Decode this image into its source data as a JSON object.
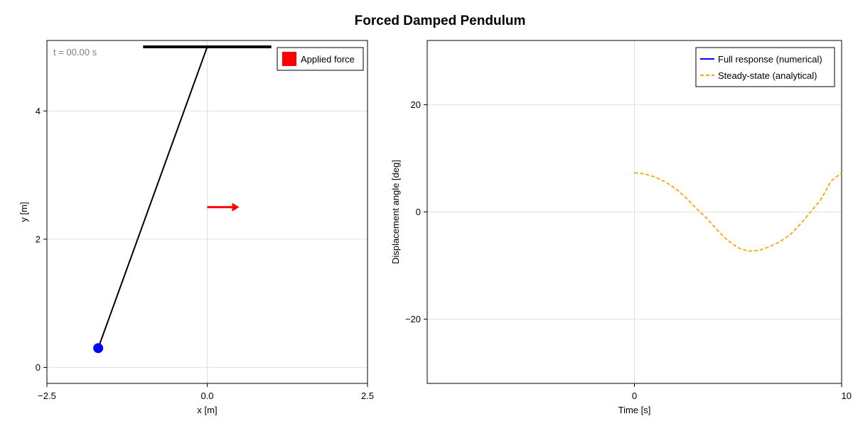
{
  "figure": {
    "title": "Forced Damped Pendulum"
  },
  "chart_data": [
    {
      "type": "scatter",
      "name": "pendulum-view",
      "xlabel": "x [m]",
      "ylabel": "y [m]",
      "xlim": [
        -2.5,
        2.5
      ],
      "ylim": [
        -0.25,
        5.1
      ],
      "xticks": [
        -2.5,
        0.0,
        2.5
      ],
      "xtick_labels": [
        "−2.5",
        "0.0",
        "2.5"
      ],
      "yticks": [
        0,
        2,
        4
      ],
      "ytick_labels": [
        "0",
        "2",
        "4"
      ],
      "grid": true,
      "time_label": "t = 00.00 s",
      "support": {
        "x": [
          -1.0,
          1.0
        ],
        "y": 5.0
      },
      "pivot": {
        "x": 0.0,
        "y": 5.0
      },
      "bob": {
        "x": -1.7,
        "y": 0.3
      },
      "force_arrow": {
        "x": [
          0.0,
          0.5
        ],
        "y": 2.5
      },
      "legend": {
        "position": "top-right",
        "entries": [
          {
            "label": "Applied force",
            "color": "#ff0000"
          }
        ]
      },
      "colors": {
        "rod": "#000000",
        "bob": "#0000ff",
        "force": "#ff0000"
      }
    },
    {
      "type": "line",
      "name": "displacement-plot",
      "xlabel": "Time [s]",
      "ylabel": "Displacement angle [deg]",
      "xlim": [
        -10,
        10
      ],
      "ylim": [
        -32,
        32
      ],
      "xticks": [
        0,
        10
      ],
      "xtick_labels": [
        "0",
        "10"
      ],
      "yticks": [
        -20,
        0,
        20
      ],
      "ytick_labels": [
        "−20",
        "0",
        "20"
      ],
      "grid": true,
      "legend": {
        "position": "top-right",
        "entries": [
          {
            "label": "Full response (numerical)",
            "color": "#0000ff",
            "style": "solid"
          },
          {
            "label": "Steady-state (analytical)",
            "color": "#ffa500",
            "style": "dashed"
          }
        ]
      },
      "series": [
        {
          "name": "Full response (numerical)",
          "x": [],
          "y": []
        },
        {
          "name": "Steady-state (analytical)",
          "x": [
            0,
            0.5,
            1,
            1.5,
            2,
            2.5,
            3,
            3.5,
            4,
            4.5,
            5,
            5.5,
            6,
            6.5,
            7,
            7.5,
            8,
            8.5,
            9,
            9.5,
            10
          ],
          "y": [
            7.3,
            7.1,
            6.5,
            5.6,
            4.3,
            2.6,
            0.6,
            -1.2,
            -3.4,
            -5.3,
            -6.7,
            -7.3,
            -7.2,
            -6.5,
            -5.6,
            -4.3,
            -2.3,
            0,
            2.3,
            5.8,
            7.3
          ]
        }
      ]
    }
  ]
}
